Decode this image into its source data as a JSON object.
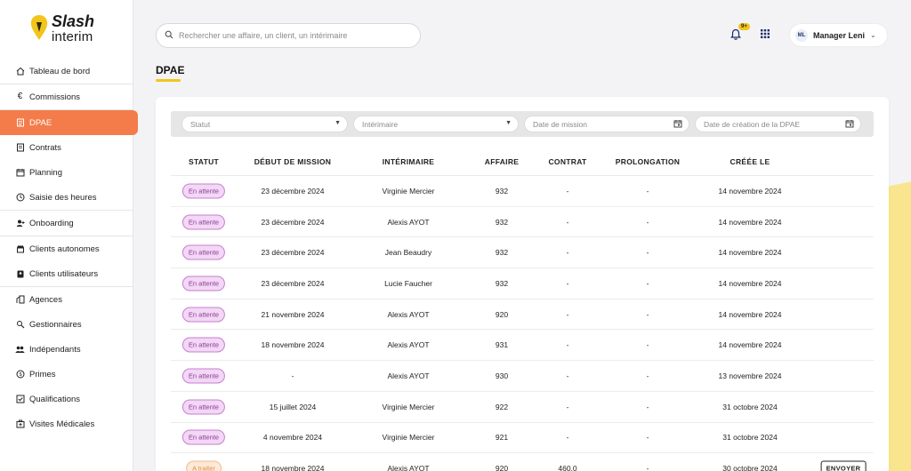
{
  "brand": {
    "line1": "Slash",
    "line2": "interim"
  },
  "sidebar": {
    "items": [
      {
        "label": "Tableau de bord",
        "icon": "home-icon"
      },
      {
        "label": "Commissions",
        "icon": "euro-icon"
      },
      {
        "label": "DPAE",
        "icon": "document-icon",
        "active": true
      },
      {
        "label": "Contrats",
        "icon": "contract-icon"
      },
      {
        "label": "Planning",
        "icon": "calendar-icon"
      },
      {
        "label": "Saisie des heures",
        "icon": "clock-icon"
      },
      {
        "label": "Onboarding",
        "icon": "user-plus-icon"
      },
      {
        "label": "Clients autonomes",
        "icon": "store-icon"
      },
      {
        "label": "Clients utilisateurs",
        "icon": "badge-icon"
      },
      {
        "label": "Agences",
        "icon": "building-icon"
      },
      {
        "label": "Gestionnaires",
        "icon": "manager-icon"
      },
      {
        "label": "Indépendants",
        "icon": "users-icon"
      },
      {
        "label": "Primes",
        "icon": "coin-icon"
      },
      {
        "label": "Qualifications",
        "icon": "check-square-icon"
      },
      {
        "label": "Visites Médicales",
        "icon": "medical-icon"
      }
    ]
  },
  "header": {
    "search_placeholder": "Rechercher une affaire, un client, un intérimaire",
    "notifications_badge": "9+",
    "user_initials": "ML",
    "user_name": "Manager Leni"
  },
  "page": {
    "title": "DPAE"
  },
  "filters": {
    "statut": "Statut",
    "interimaire": "Intérimaire",
    "date_mission": "Date de mission",
    "date_creation": "Date de création de la DPAE"
  },
  "table": {
    "columns": [
      "STATUT",
      "DÉBUT DE MISSION",
      "INTÉRIMAIRE",
      "AFFAIRE",
      "CONTRAT",
      "PROLONGATION",
      "CRÉÉE LE"
    ],
    "rows": [
      {
        "status": "En attente",
        "start": "23 décembre 2024",
        "worker": "Virginie Mercier",
        "affaire": "932",
        "contrat": "-",
        "prolongation": "-",
        "created": "14 novembre 2024",
        "action": ""
      },
      {
        "status": "En attente",
        "start": "23 décembre 2024",
        "worker": "Alexis AYOT",
        "affaire": "932",
        "contrat": "-",
        "prolongation": "-",
        "created": "14 novembre 2024",
        "action": ""
      },
      {
        "status": "En attente",
        "start": "23 décembre 2024",
        "worker": "Jean Beaudry",
        "affaire": "932",
        "contrat": "-",
        "prolongation": "-",
        "created": "14 novembre 2024",
        "action": ""
      },
      {
        "status": "En attente",
        "start": "23 décembre 2024",
        "worker": "Lucie Faucher",
        "affaire": "932",
        "contrat": "-",
        "prolongation": "-",
        "created": "14 novembre 2024",
        "action": ""
      },
      {
        "status": "En attente",
        "start": "21 novembre 2024",
        "worker": "Alexis AYOT",
        "affaire": "920",
        "contrat": "-",
        "prolongation": "-",
        "created": "14 novembre 2024",
        "action": ""
      },
      {
        "status": "En attente",
        "start": "18 novembre 2024",
        "worker": "Alexis AYOT",
        "affaire": "931",
        "contrat": "-",
        "prolongation": "-",
        "created": "14 novembre 2024",
        "action": ""
      },
      {
        "status": "En attente",
        "start": "-",
        "worker": "Alexis AYOT",
        "affaire": "930",
        "contrat": "-",
        "prolongation": "-",
        "created": "13 novembre 2024",
        "action": ""
      },
      {
        "status": "En attente",
        "start": "15 juillet 2024",
        "worker": "Virginie Mercier",
        "affaire": "922",
        "contrat": "-",
        "prolongation": "-",
        "created": "31 octobre 2024",
        "action": ""
      },
      {
        "status": "En attente",
        "start": "4 novembre 2024",
        "worker": "Virginie Mercier",
        "affaire": "921",
        "contrat": "-",
        "prolongation": "-",
        "created": "31 octobre 2024",
        "action": ""
      },
      {
        "status": "A traiter",
        "start": "18 novembre 2024",
        "worker": "Alexis AYOT",
        "affaire": "920",
        "contrat": "460.0",
        "prolongation": "-",
        "created": "30 octobre 2024",
        "action": "ENVOYER"
      }
    ]
  },
  "colors": {
    "accent": "#f47c4b",
    "brand_yellow": "#f2c51a",
    "status_wait": "#c77fcf",
    "status_todo": "#f3b987"
  }
}
